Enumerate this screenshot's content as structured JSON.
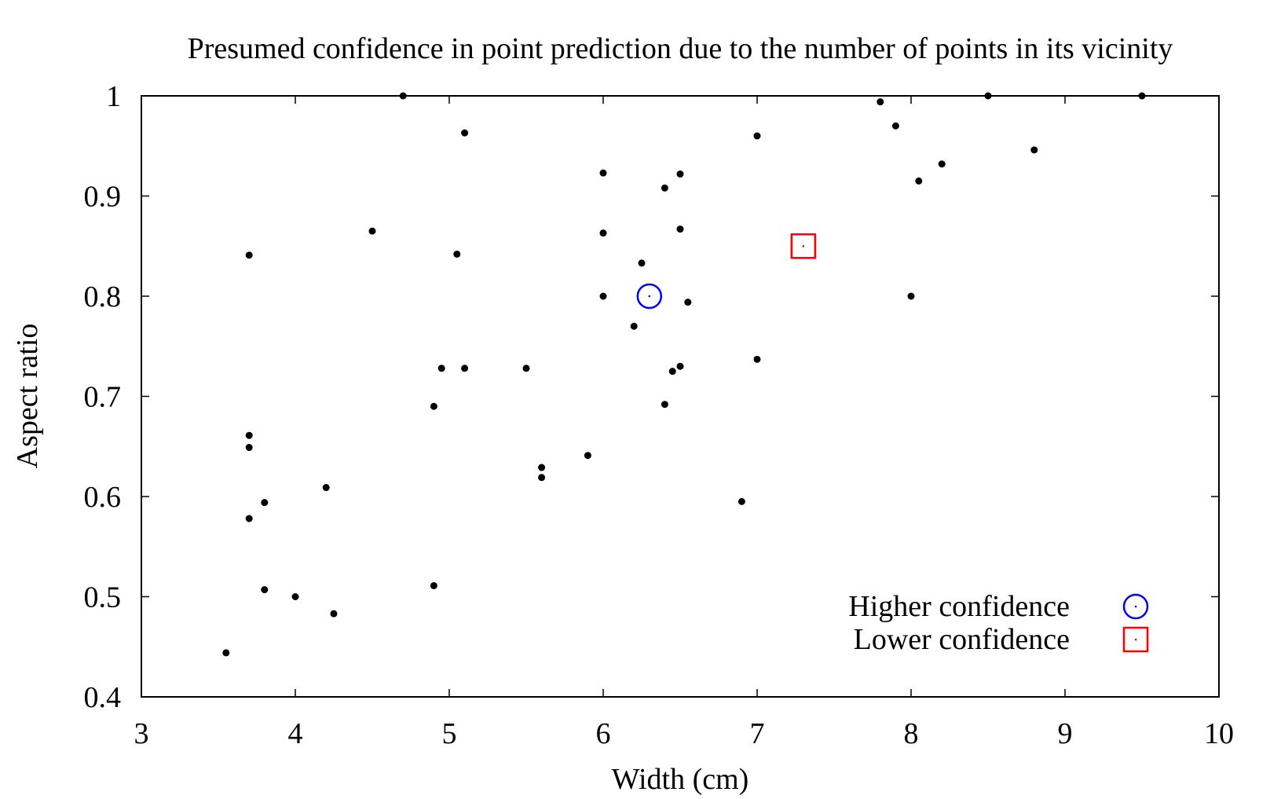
{
  "chart_data": {
    "type": "scatter",
    "title": "Presumed confidence in point prediction due to the number of points in its vicinity",
    "xlabel": "Width (cm)",
    "ylabel": "Aspect ratio",
    "xlim": [
      3,
      10
    ],
    "ylim": [
      0.4,
      1.0
    ],
    "xticks": [
      "3",
      "4",
      "5",
      "6",
      "7",
      "8",
      "9",
      "10"
    ],
    "yticks": [
      "0.4",
      "0.5",
      "0.6",
      "0.7",
      "0.8",
      "0.9",
      "1"
    ],
    "grid": false,
    "legend_position": "bottom-right",
    "points": [
      [
        3.55,
        0.444
      ],
      [
        3.7,
        0.841
      ],
      [
        3.7,
        0.661
      ],
      [
        3.7,
        0.649
      ],
      [
        3.7,
        0.578
      ],
      [
        3.8,
        0.594
      ],
      [
        3.8,
        0.507
      ],
      [
        4.0,
        0.5
      ],
      [
        4.2,
        0.609
      ],
      [
        4.25,
        0.483
      ],
      [
        4.5,
        0.865
      ],
      [
        4.7,
        1.0
      ],
      [
        4.9,
        0.69
      ],
      [
        4.9,
        0.511
      ],
      [
        4.95,
        0.728
      ],
      [
        5.05,
        0.842
      ],
      [
        5.1,
        0.963
      ],
      [
        5.1,
        0.728
      ],
      [
        5.5,
        0.728
      ],
      [
        5.6,
        0.629
      ],
      [
        5.6,
        0.619
      ],
      [
        5.9,
        0.641
      ],
      [
        6.0,
        0.923
      ],
      [
        6.0,
        0.863
      ],
      [
        6.0,
        0.8
      ],
      [
        6.2,
        0.77
      ],
      [
        6.25,
        0.833
      ],
      [
        6.4,
        0.908
      ],
      [
        6.4,
        0.692
      ],
      [
        6.45,
        0.725
      ],
      [
        6.5,
        0.922
      ],
      [
        6.5,
        0.867
      ],
      [
        6.5,
        0.73
      ],
      [
        6.55,
        0.794
      ],
      [
        6.9,
        0.595
      ],
      [
        7.0,
        0.96
      ],
      [
        7.0,
        0.737
      ],
      [
        7.8,
        0.994
      ],
      [
        7.9,
        0.97
      ],
      [
        8.0,
        0.8
      ],
      [
        8.05,
        0.915
      ],
      [
        8.2,
        0.932
      ],
      [
        8.5,
        1.0
      ],
      [
        8.8,
        0.946
      ],
      [
        9.5,
        1.0
      ]
    ],
    "series": [
      {
        "name": "Higher confidence",
        "marker": "circle",
        "color": "#0000ff",
        "x": [
          6.3
        ],
        "y": [
          0.8
        ]
      },
      {
        "name": "Lower confidence",
        "marker": "square",
        "color": "#ff0000",
        "x": [
          7.3
        ],
        "y": [
          0.85
        ]
      }
    ],
    "point_color": "#000000"
  }
}
